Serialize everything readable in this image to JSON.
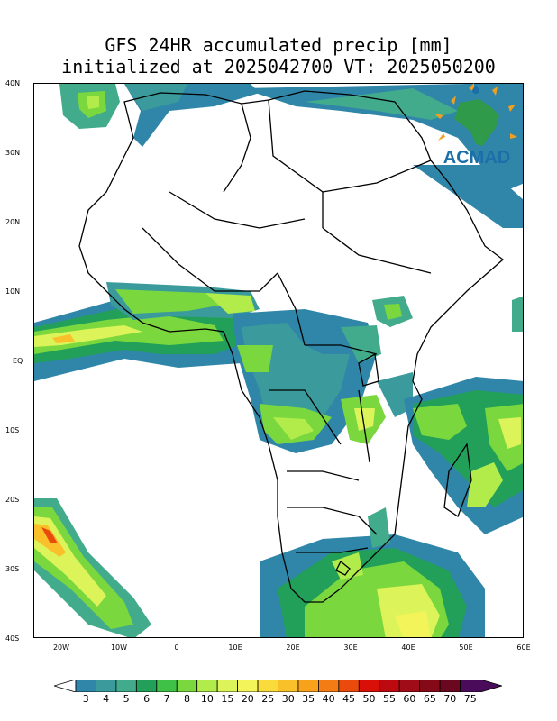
{
  "title": {
    "line1": "GFS 24HR accumulated precip [mm]",
    "line2": "initialized at 2025042700 VT: 2025050200"
  },
  "axes": {
    "y_ticks": [
      "40N",
      "30N",
      "20N",
      "10N",
      "EQ",
      "10S",
      "20S",
      "30S",
      "40S"
    ],
    "x_ticks": [
      "20W",
      "10W",
      "0",
      "10E",
      "20E",
      "30E",
      "40E",
      "50E",
      "60E"
    ]
  },
  "colorbar": {
    "labels": [
      "3",
      "4",
      "5",
      "6",
      "7",
      "8",
      "10",
      "15",
      "20",
      "25",
      "30",
      "35",
      "40",
      "45",
      "50",
      "55",
      "60",
      "65",
      "70",
      "75"
    ],
    "colors": [
      "#2f86a8",
      "#3a9a9c",
      "#41ab8c",
      "#22a05a",
      "#3fc046",
      "#7ad83e",
      "#b2ec4a",
      "#dcf35a",
      "#f3f35a",
      "#f9dc3c",
      "#f9c02a",
      "#f8a21c",
      "#f47c14",
      "#ea4a0c",
      "#d81008",
      "#bc0a10",
      "#a00c18",
      "#850a18",
      "#6a0820",
      "#4a0c5a"
    ]
  },
  "logo": {
    "text": "ACMAD"
  }
}
